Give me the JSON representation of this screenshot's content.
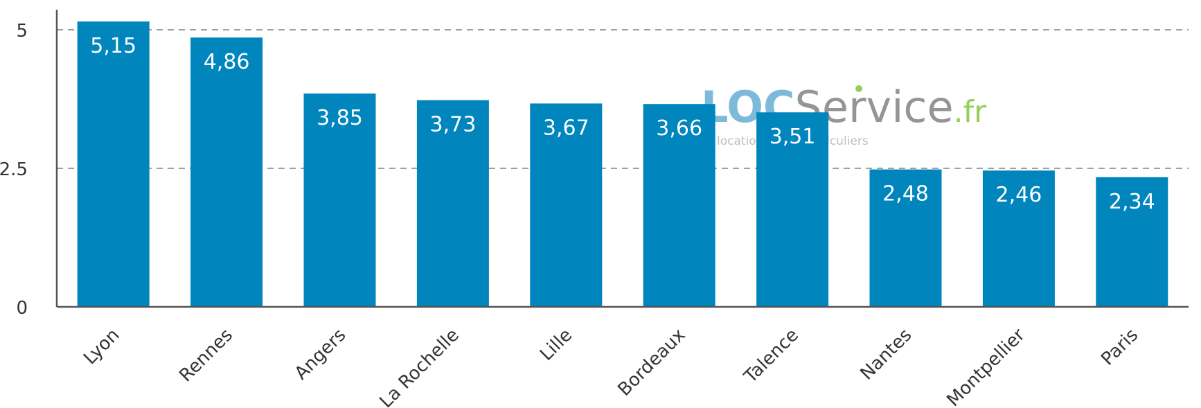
{
  "chart_data": {
    "type": "bar",
    "categories": [
      "Lyon",
      "Rennes",
      "Angers",
      "La Rochelle",
      "Lille",
      "Bordeaux",
      "Talence",
      "Nantes",
      "Montpellier",
      "Paris"
    ],
    "values": [
      5.15,
      4.86,
      3.85,
      3.73,
      3.67,
      3.66,
      3.51,
      2.48,
      2.46,
      2.34
    ],
    "value_labels": [
      "5,15",
      "4,86",
      "3,85",
      "3,73",
      "3,67",
      "3,66",
      "3,51",
      "2,48",
      "2,46",
      "2,34"
    ],
    "yticks": [
      0,
      2.5,
      5
    ],
    "ytick_labels": [
      "0",
      "2.5",
      "5"
    ],
    "ylim": [
      0,
      5.45
    ],
    "grid": true,
    "title": "",
    "xlabel": "",
    "ylabel": ""
  },
  "watermark": {
    "brand_loc": "LOC",
    "brand_service": "Service",
    "brand_tld": ".fr",
    "tagline": "location entre particuliers"
  },
  "colors": {
    "bar": "#0085bd",
    "grid": "#a0a0a0",
    "axis": "#555555",
    "watermark_blue": "#6fb3d6",
    "watermark_grey": "#8a8a8a",
    "watermark_green": "#8cc84b"
  }
}
